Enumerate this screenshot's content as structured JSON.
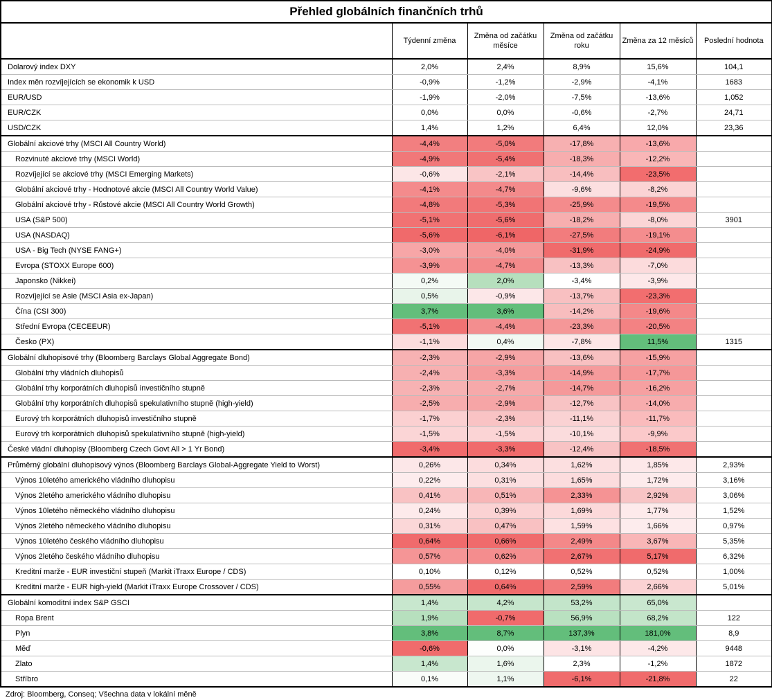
{
  "title": "Přehled globálních finančních trhů",
  "columns": [
    "Týdenní změna",
    "Změna od začátku měsíce",
    "Změna od začátku roku",
    "Změna za 12 měsíců",
    "Poslední hodnota"
  ],
  "groups": [
    {
      "rows": [
        {
          "name": "Dolarový index DXY",
          "sub": false,
          "v": [
            "2,0%",
            "2,4%",
            "8,9%",
            "15,6%"
          ],
          "last": "104,1"
        },
        {
          "name": "Index měn rozvíjejících se ekonomik k USD",
          "sub": false,
          "v": [
            "-0,9%",
            "-1,2%",
            "-2,9%",
            "-4,1%"
          ],
          "last": "1683"
        },
        {
          "name": "EUR/USD",
          "sub": false,
          "v": [
            "-1,9%",
            "-2,0%",
            "-7,5%",
            "-13,6%"
          ],
          "last": "1,052"
        },
        {
          "name": "EUR/CZK",
          "sub": false,
          "v": [
            "0,0%",
            "0,0%",
            "-0,6%",
            "-2,7%"
          ],
          "last": "24,71"
        },
        {
          "name": "USD/CZK",
          "sub": false,
          "v": [
            "1,4%",
            "1,2%",
            "6,4%",
            "12,0%"
          ],
          "last": "23,36"
        }
      ]
    },
    {
      "rows": [
        {
          "name": "Globální akciové trhy (MSCI All Country World)",
          "sub": false,
          "v": [
            "-4,4%",
            "-5,0%",
            "-17,8%",
            "-13,6%"
          ],
          "c": [
            "#f27f80",
            "#f27b7c",
            "#f7b0b1",
            "#f8a9ab"
          ],
          "last": ""
        },
        {
          "name": "Rozvinuté akciové trhy (MSCI World)",
          "sub": true,
          "v": [
            "-4,9%",
            "-5,4%",
            "-18,3%",
            "-12,2%"
          ],
          "c": [
            "#f17879",
            "#f07172",
            "#f7adae",
            "#f9b6b7"
          ],
          "last": ""
        },
        {
          "name": "Rozvíjející se akciové trhy (MSCI Emerging Markets)",
          "sub": true,
          "v": [
            "-0,6%",
            "-2,1%",
            "-14,4%",
            "-23,5%"
          ],
          "c": [
            "#fce6e7",
            "#f9c4c5",
            "#f8bebf",
            "#f26d6e"
          ],
          "last": ""
        },
        {
          "name": "Globální akciové trhy - Hodnotové akcie (MSCI All Country World Value)",
          "sub": true,
          "v": [
            "-4,1%",
            "-4,7%",
            "-9,6%",
            "-8,2%"
          ],
          "c": [
            "#f48b8c",
            "#f38a8b",
            "#fcdfe0",
            "#fbd3d4"
          ],
          "last": ""
        },
        {
          "name": "Globální akciové trhy - Růstové akcie (MSCI All Country World Growth)",
          "sub": true,
          "v": [
            "-4,8%",
            "-5,3%",
            "-25,9%",
            "-19,5%"
          ],
          "c": [
            "#f27a7b",
            "#f17475",
            "#f48b8c",
            "#f48a8b"
          ],
          "last": ""
        },
        {
          "name": "USA (S&P 500)",
          "sub": true,
          "v": [
            "-5,1%",
            "-5,6%",
            "-18,2%",
            "-8,0%"
          ],
          "c": [
            "#f17273",
            "#f06d6e",
            "#f7aeaf",
            "#fbd5d6"
          ],
          "last": "3901"
        },
        {
          "name": "USA (NASDAQ)",
          "sub": true,
          "v": [
            "-5,6%",
            "-6,1%",
            "-27,5%",
            "-19,1%"
          ],
          "c": [
            "#f06a6b",
            "#ef6667",
            "#f27c7d",
            "#f48d8e"
          ],
          "last": ""
        },
        {
          "name": "USA - Big Tech (NYSE FANG+)",
          "sub": true,
          "v": [
            "-3,0%",
            "-4,0%",
            "-31,9%",
            "-24,9%"
          ],
          "c": [
            "#f7a6a7",
            "#f5999a",
            "#f06b6c",
            "#f06b6c"
          ],
          "last": ""
        },
        {
          "name": "Evropa (STOXX Europe 600)",
          "sub": true,
          "v": [
            "-3,9%",
            "-4,7%",
            "-13,3%",
            "-7,0%"
          ],
          "c": [
            "#f59293",
            "#f38a8b",
            "#f8c1c2",
            "#fcdbdc"
          ],
          "last": ""
        },
        {
          "name": "Japonsko (Nikkei)",
          "sub": true,
          "v": [
            "0,2%",
            "2,0%",
            "-3,4%",
            "-3,9%"
          ],
          "c": [
            "#f4faf5",
            "#b6dfbd",
            "#ffffff",
            "#fde8e9"
          ],
          "last": ""
        },
        {
          "name": "Rozvíjející se Asie (MSCI Asia ex-Japan)",
          "sub": true,
          "v": [
            "0,5%",
            "-0,9%",
            "-13,7%",
            "-23,3%"
          ],
          "c": [
            "#e8f4ea",
            "#fce7e8",
            "#f8c0c1",
            "#f26e6f"
          ],
          "last": ""
        },
        {
          "name": "Čína (CSI 300)",
          "sub": true,
          "v": [
            "3,7%",
            "3,6%",
            "-14,2%",
            "-19,6%"
          ],
          "c": [
            "#63be7b",
            "#63be7b",
            "#f8bdbe",
            "#f48889"
          ],
          "last": ""
        },
        {
          "name": "Střední Evropa (CECEEUR)",
          "sub": true,
          "v": [
            "-5,1%",
            "-4,4%",
            "-23,3%",
            "-20,5%"
          ],
          "c": [
            "#f17273",
            "#f38e8f",
            "#f59798",
            "#f38283"
          ],
          "last": ""
        },
        {
          "name": "Česko (PX)",
          "sub": true,
          "v": [
            "-1,1%",
            "0,4%",
            "-7,8%",
            "11,5%"
          ],
          "c": [
            "#fcdcdd",
            "#f2f9f3",
            "#fde5e6",
            "#63be7b"
          ],
          "last": "1315"
        }
      ]
    },
    {
      "rows": [
        {
          "name": "Globální dluhopisové trhy (Bloomberg Barclays Global Aggregate Bond)",
          "sub": false,
          "v": [
            "-2,3%",
            "-2,9%",
            "-13,6%",
            "-15,9%"
          ],
          "c": [
            "#f7b2b3",
            "#f6a5a6",
            "#f8c0c1",
            "#f6a1a2"
          ],
          "last": ""
        },
        {
          "name": "Globální trhy vládních dluhopisů",
          "sub": true,
          "v": [
            "-2,4%",
            "-3,3%",
            "-14,9%",
            "-17,7%"
          ],
          "c": [
            "#f7b0b1",
            "#f59c9d",
            "#f59b9c",
            "#f59798"
          ],
          "last": ""
        },
        {
          "name": "Globální trhy korporátních dluhopisů investičního stupně",
          "sub": true,
          "v": [
            "-2,3%",
            "-2,7%",
            "-14,7%",
            "-16,2%"
          ],
          "c": [
            "#f7b2b3",
            "#f6a9aa",
            "#f5999a",
            "#f6a0a1"
          ],
          "last": ""
        },
        {
          "name": "Globální trhy korporátních dluhopisů spekulativního stupně (high-yield)",
          "sub": true,
          "v": [
            "-2,5%",
            "-2,9%",
            "-12,7%",
            "-14,0%"
          ],
          "c": [
            "#f7adae",
            "#f6a5a6",
            "#f8c3c4",
            "#f7acad"
          ],
          "last": ""
        },
        {
          "name": "Eurový trh korporátních dluhopisů investičního stupně",
          "sub": true,
          "v": [
            "-1,7%",
            "-2,3%",
            "-11,1%",
            "-11,7%"
          ],
          "c": [
            "#fbd0d1",
            "#f9c3c4",
            "#fad2d3",
            "#fabbbc"
          ],
          "last": ""
        },
        {
          "name": "Eurový trh korporátních dluhopisů spekulativního stupně (high-yield)",
          "sub": true,
          "v": [
            "-1,5%",
            "-1,5%",
            "-10,1%",
            "-9,9%"
          ],
          "c": [
            "#fbd5d6",
            "#fbd4d5",
            "#fbdcdd",
            "#fbc9ca"
          ],
          "last": ""
        },
        {
          "name": "České vládní dluhopisy (Bloomberg Czech Govt All > 1 Yr Bond)",
          "sub": false,
          "v": [
            "-3,4%",
            "-3,3%",
            "-12,4%",
            "-18,5%"
          ],
          "c": [
            "#f06b6c",
            "#f06b6c",
            "#f8c3c4",
            "#f07172"
          ],
          "last": ""
        }
      ]
    },
    {
      "rows": [
        {
          "name": "Průměrný globální dluhopisový výnos (Bloomberg Barclays Global-Aggregate Yield to Worst)",
          "sub": false,
          "v": [
            "0,26%",
            "0,34%",
            "1,62%",
            "1,85%"
          ],
          "c": [
            "#fce7e8",
            "#fcdcdd",
            "#fcdfe0",
            "#fde8e9"
          ],
          "last": "2,93%"
        },
        {
          "name": "Výnos 10letého amerického vládního dluhopisu",
          "sub": true,
          "v": [
            "0,22%",
            "0,31%",
            "1,65%",
            "1,72%"
          ],
          "c": [
            "#fdeced",
            "#fcdfe0",
            "#fcdcdd",
            "#fdebec"
          ],
          "last": "3,16%"
        },
        {
          "name": "Výnos 2letého amerického vládního dluhopisu",
          "sub": true,
          "v": [
            "0,41%",
            "0,51%",
            "2,33%",
            "2,92%"
          ],
          "c": [
            "#f9c2c3",
            "#f8b6b7",
            "#f59394",
            "#f8c4c5"
          ],
          "last": "3,06%"
        },
        {
          "name": "Výnos 10letého německého vládního dluhopisu",
          "sub": true,
          "v": [
            "0,24%",
            "0,39%",
            "1,69%",
            "1,77%"
          ],
          "c": [
            "#fdeaeb",
            "#fbd2d3",
            "#fcd9da",
            "#fdeaeb"
          ],
          "last": "1,52%"
        },
        {
          "name": "Výnos 2letého německého vládního dluhopisu",
          "sub": true,
          "v": [
            "0,31%",
            "0,47%",
            "1,59%",
            "1,66%"
          ],
          "c": [
            "#fbd7d8",
            "#f9c1c2",
            "#fde1e2",
            "#fdeced"
          ],
          "last": "0,97%"
        },
        {
          "name": "Výnos 10letého českého vládního dluhopisu",
          "sub": true,
          "v": [
            "0,64%",
            "0,66%",
            "2,49%",
            "3,67%"
          ],
          "c": [
            "#f06b6c",
            "#f06b6c",
            "#f48889",
            "#f9b6b7"
          ],
          "last": "5,35%"
        },
        {
          "name": "Výnos 2letého českého vládního dluhopisu",
          "sub": true,
          "v": [
            "0,57%",
            "0,62%",
            "2,67%",
            "5,17%"
          ],
          "c": [
            "#f59596",
            "#f48d8e",
            "#f17172",
            "#f06b6c"
          ],
          "last": "6,32%"
        },
        {
          "name": "Kreditní marže - EUR investiční stupeň (Markit iTraxx Europe / CDS)",
          "sub": true,
          "v": [
            "0,10%",
            "0,12%",
            "0,52%",
            "0,52%"
          ],
          "c": [
            "#ffffff",
            "#ffffff",
            "#ffffff",
            "#ffffff"
          ],
          "last": "1,00%"
        },
        {
          "name": "Kreditní marže - EUR high-yield (Markit iTraxx Europe Crossover / CDS)",
          "sub": true,
          "v": [
            "0,55%",
            "0,64%",
            "2,59%",
            "2,66%"
          ],
          "c": [
            "#f59c9d",
            "#f06b6c",
            "#f27c7d",
            "#fbd2d3"
          ],
          "last": "5,01%"
        }
      ]
    },
    {
      "rows": [
        {
          "name": "Globální komoditní index S&P GSCI",
          "sub": false,
          "v": [
            "1,4%",
            "4,2%",
            "53,2%",
            "65,0%"
          ],
          "c": [
            "#c8e7ce",
            "#c6e6cc",
            "#c3e5ca",
            "#c9e7cf"
          ],
          "last": ""
        },
        {
          "name": "Ropa Brent",
          "sub": true,
          "v": [
            "1,9%",
            "-0,7%",
            "56,9%",
            "68,2%"
          ],
          "c": [
            "#b7e0be",
            "#f06b6c",
            "#b9e1c0",
            "#c3e5c9"
          ],
          "last": "122"
        },
        {
          "name": "Plyn",
          "sub": true,
          "v": [
            "3,8%",
            "8,7%",
            "137,3%",
            "181,0%"
          ],
          "c": [
            "#63be7b",
            "#63be7b",
            "#63be7b",
            "#63be7b"
          ],
          "last": "8,9"
        },
        {
          "name": "Měď",
          "sub": true,
          "v": [
            "-0,6%",
            "0,0%",
            "-3,1%",
            "-4,2%"
          ],
          "c": [
            "#f06b6c",
            "#fdfefd",
            "#fde4e5",
            "#fde8e9"
          ],
          "last": "9448"
        },
        {
          "name": "Zlato",
          "sub": true,
          "v": [
            "1,4%",
            "1,6%",
            "2,3%",
            "-1,2%"
          ],
          "c": [
            "#c8e7ce",
            "#ebf6ed",
            "#ffffff",
            "#ffffff"
          ],
          "last": "1872"
        },
        {
          "name": "Stříbro",
          "sub": true,
          "v": [
            "0,1%",
            "1,1%",
            "-6,1%",
            "-21,8%"
          ],
          "c": [
            "#f9fcf9",
            "#eef7f0",
            "#f06b6c",
            "#f06b6c"
          ],
          "last": "22"
        }
      ]
    }
  ],
  "footer": "Zdroj: Bloomberg, Conseq; Všechna data v lokální měně"
}
